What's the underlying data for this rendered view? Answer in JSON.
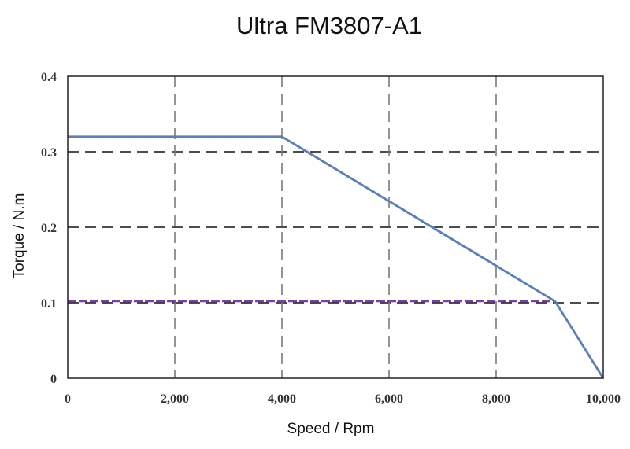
{
  "chart_data": {
    "type": "line",
    "title": "Ultra FM3807-A1",
    "xlabel": "Speed / Rpm",
    "ylabel": "Torque / N.m",
    "xlim": [
      0,
      10000
    ],
    "ylim": [
      0,
      0.4
    ],
    "x_ticks": [
      "0",
      "2,000",
      "4,000",
      "6,000",
      "8,000",
      "10,000"
    ],
    "x_tick_values": [
      0,
      2000,
      4000,
      6000,
      8000,
      10000
    ],
    "y_ticks": [
      "0",
      "0.1",
      "0.2",
      "0.3",
      "0.4"
    ],
    "y_tick_values": [
      0,
      0.1,
      0.2,
      0.3,
      0.4
    ],
    "grid": true,
    "series": [
      {
        "color": "#5b7fb9",
        "style": "solid",
        "x": [
          0,
          4000,
          9100,
          10000
        ],
        "y": [
          0.32,
          0.32,
          0.102,
          0
        ]
      },
      {
        "color": "#7a3ea8",
        "style": "dashed",
        "x": [
          0,
          9100
        ],
        "y": [
          0.102,
          0.102
        ]
      }
    ]
  }
}
